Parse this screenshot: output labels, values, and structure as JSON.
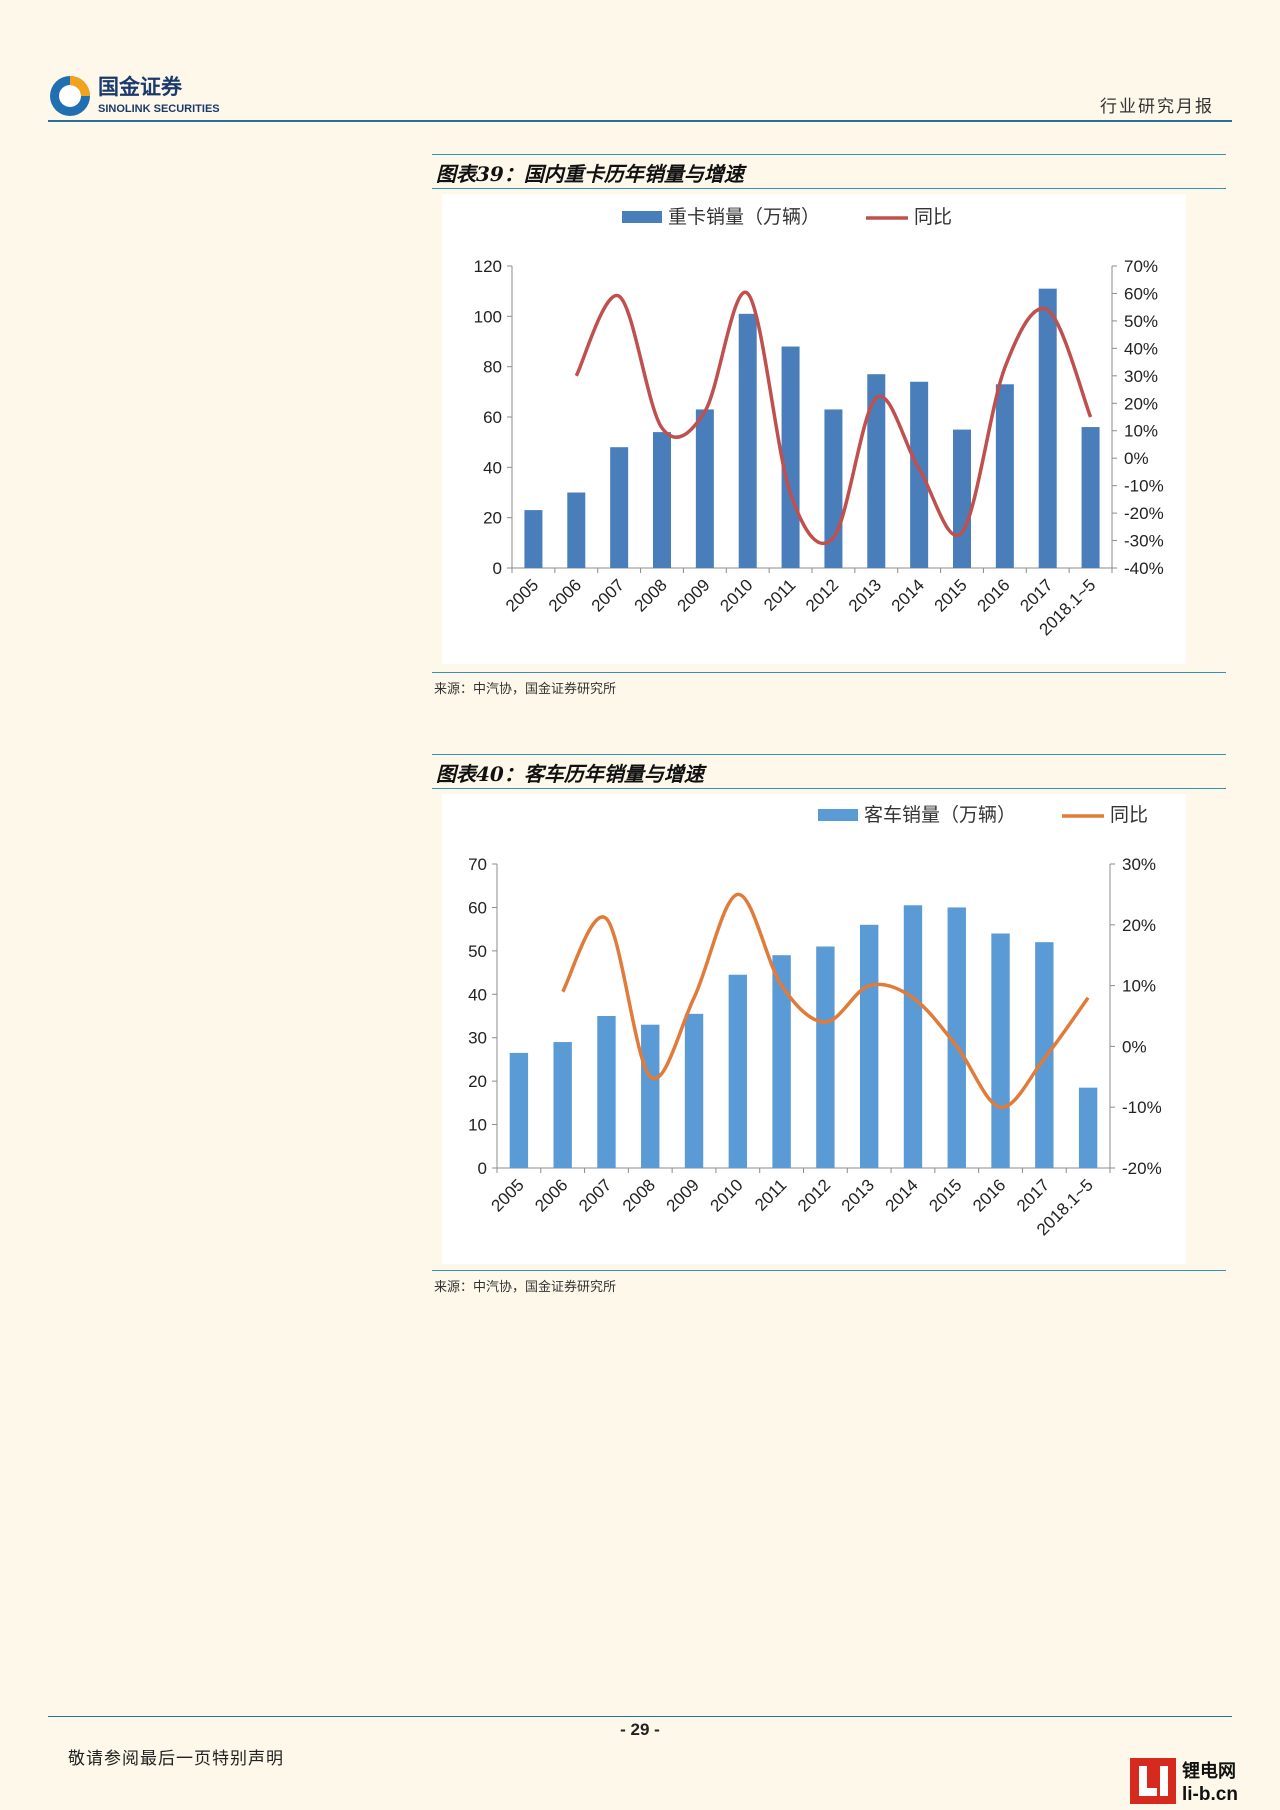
{
  "header": {
    "brand_cn": "国金证券",
    "brand_en": "SINOLINK SECURITIES",
    "report_type": "行业研究月报"
  },
  "colors": {
    "accent": "#2a6f9c",
    "rule": "#3a8fb7"
  },
  "figures": [
    {
      "title": "图表39：国内重卡历年销量与增速",
      "source": "来源：中汽协，国金证券研究所"
    },
    {
      "title": "图表40：客车历年销量与增速",
      "source": "来源：中汽协，国金证券研究所"
    }
  ],
  "chart_data": [
    {
      "type": "bar",
      "categories": [
        "2005",
        "2006",
        "2007",
        "2008",
        "2009",
        "2010",
        "2011",
        "2012",
        "2013",
        "2014",
        "2015",
        "2016",
        "2017",
        "2018.1~5"
      ],
      "series": [
        {
          "name": "重卡销量（万辆）",
          "type": "bar",
          "axis": "left",
          "color": "#4a7ebb",
          "values": [
            23,
            30,
            48,
            54,
            63,
            101,
            88,
            63,
            77,
            74,
            55,
            73,
            111,
            56
          ]
        },
        {
          "name": "同比",
          "type": "line",
          "axis": "right",
          "color": "#c0504d",
          "values": [
            null,
            0.3,
            0.59,
            0.11,
            0.17,
            0.6,
            -0.13,
            -0.29,
            0.22,
            -0.04,
            -0.27,
            0.33,
            0.54,
            0.15
          ]
        }
      ],
      "left_axis": {
        "min": 0,
        "max": 120,
        "step": 20,
        "ticks": [
          "0",
          "20",
          "40",
          "60",
          "80",
          "100",
          "120"
        ]
      },
      "right_axis": {
        "min": -0.4,
        "max": 0.7,
        "step": 0.1,
        "ticks": [
          "-40%",
          "-30%",
          "-20%",
          "-10%",
          "0%",
          "10%",
          "20%",
          "30%",
          "40%",
          "50%",
          "60%",
          "70%"
        ]
      },
      "legend_position": "top",
      "grid": false
    },
    {
      "type": "bar",
      "categories": [
        "2005",
        "2006",
        "2007",
        "2008",
        "2009",
        "2010",
        "2011",
        "2012",
        "2013",
        "2014",
        "2015",
        "2016",
        "2017",
        "2018.1~5"
      ],
      "series": [
        {
          "name": "客车销量（万辆）",
          "type": "bar",
          "axis": "left",
          "color": "#5b9bd5",
          "values": [
            26.5,
            29,
            35,
            33,
            35.5,
            44.5,
            49,
            51,
            56,
            60.5,
            60,
            54,
            52,
            18.5
          ]
        },
        {
          "name": "同比",
          "type": "line",
          "axis": "right",
          "color": "#e07b39",
          "values": [
            null,
            0.09,
            0.21,
            -0.05,
            0.08,
            0.25,
            0.1,
            0.04,
            0.1,
            0.08,
            0.0,
            -0.1,
            -0.02,
            0.08
          ]
        }
      ],
      "left_axis": {
        "min": 0,
        "max": 70,
        "step": 10,
        "ticks": [
          "0",
          "10",
          "20",
          "30",
          "40",
          "50",
          "60",
          "70"
        ]
      },
      "right_axis": {
        "min": -0.2,
        "max": 0.3,
        "step": 0.1,
        "ticks": [
          "-20%",
          "-10%",
          "0%",
          "10%",
          "20%",
          "30%"
        ]
      },
      "legend_position": "top-right",
      "grid": false
    }
  ],
  "footer": {
    "page_number": "- 29 -",
    "disclaimer": "敬请参阅最后一页特别声明",
    "watermark_cn": "锂电网",
    "watermark_url": "li-b.cn"
  }
}
